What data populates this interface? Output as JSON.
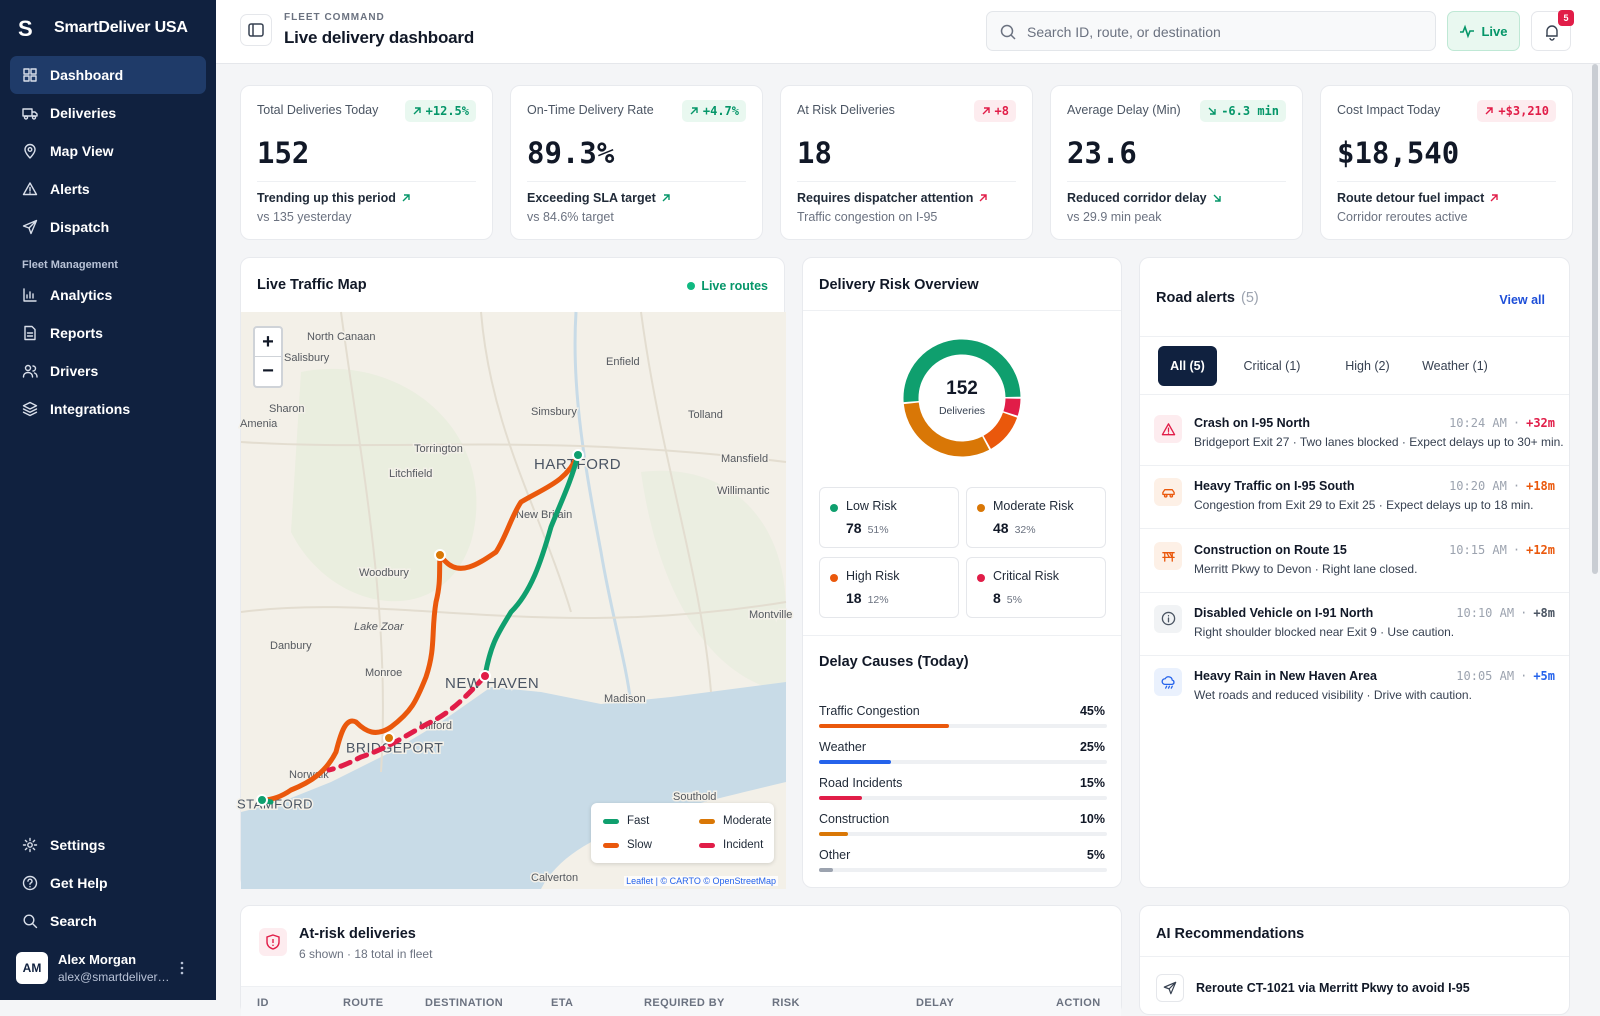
{
  "sidebar": {
    "logo": "S",
    "brand": "SmartDeliver USA",
    "nav": [
      "Dashboard",
      "Deliveries",
      "Map View",
      "Alerts",
      "Dispatch"
    ],
    "section": "Fleet Management",
    "nav2": [
      "Analytics",
      "Reports",
      "Drivers",
      "Integrations"
    ],
    "footer": [
      "Settings",
      "Get Help",
      "Search"
    ],
    "user": {
      "initials": "AM",
      "name": "Alex Morgan",
      "email": "alex@smartdeliver…"
    }
  },
  "header": {
    "overline": "FLEET COMMAND",
    "title": "Live delivery dashboard",
    "search_placeholder": "Search ID, route, or destination",
    "live": "Live",
    "notifications": 5
  },
  "kpis": [
    {
      "label": "Total Deliveries Today",
      "delta": "+12.5%",
      "trend": "up",
      "value": "152",
      "note": "Trending up this period",
      "sub": "vs 135 yesterday"
    },
    {
      "label": "On-Time Delivery Rate",
      "delta": "+4.7%",
      "trend": "up",
      "value": "89.3%",
      "note": "Exceeding SLA target",
      "sub": "vs 84.6% target"
    },
    {
      "label": "At Risk Deliveries",
      "delta": "+8",
      "trend": "bad",
      "value": "18",
      "note": "Requires dispatcher attention",
      "sub": "Traffic congestion on I-95"
    },
    {
      "label": "Average Delay (Min)",
      "delta": "-6.3 min",
      "trend": "down",
      "value": "23.6",
      "note": "Reduced corridor delay",
      "sub": "vs 29.9 min peak"
    },
    {
      "label": "Cost Impact Today",
      "delta": "+$3,210",
      "trend": "bad",
      "value": "$18,540",
      "note": "Route detour fuel impact",
      "sub": "Corridor reroutes active"
    }
  ],
  "map": {
    "title": "Live Traffic Map",
    "status": "Live routes",
    "zoom_in": "+",
    "zoom_out": "−",
    "places": [
      "North Canaan",
      "Salisbury",
      "Enfield",
      "Sharon",
      "Simsbury",
      "Tolland",
      "Amenia",
      "Torrington",
      "Litchfield",
      "Mansfield",
      "HARTFORD",
      "Willimantic",
      "New Britain",
      "Woodbury",
      "Lake Zoar",
      "Danbury",
      "Montville",
      "Monroe",
      "NEW HAVEN",
      "Madison",
      "BRIDGEPORT",
      "Milford",
      "Norwalk",
      "STAMFORD",
      "Southold",
      "Calverton"
    ],
    "legend": [
      "Fast",
      "Moderate",
      "Slow",
      "Incident"
    ],
    "legend_colors": [
      "#0f9f6e",
      "#d97706",
      "#ea580c",
      "#e11d48"
    ],
    "attribution": "Leaflet | © CARTO © OpenStreetMap"
  },
  "risk": {
    "title": "Delivery Risk Overview",
    "total": 152,
    "total_label": "Deliveries",
    "levels": [
      {
        "name": "Low Risk",
        "value": 78,
        "share": "51%",
        "color": "#0f9f6e"
      },
      {
        "name": "Moderate Risk",
        "value": 48,
        "share": "32%",
        "color": "#d97706"
      },
      {
        "name": "High Risk",
        "value": 18,
        "share": "12%",
        "color": "#ea580c"
      },
      {
        "name": "Critical Risk",
        "value": 8,
        "share": "5%",
        "color": "#e11d48"
      }
    ]
  },
  "delays": {
    "title": "Delay Causes (Today)",
    "categories": [
      "Traffic Congestion",
      "Weather",
      "Road Incidents",
      "Construction",
      "Other"
    ],
    "values": [
      45,
      25,
      15,
      10,
      5
    ],
    "value_labels": [
      "45%",
      "25%",
      "15%",
      "10%",
      "5%"
    ],
    "colors": [
      "#ea580c",
      "#2563eb",
      "#e11d48",
      "#d97706",
      "#9ca3af"
    ],
    "xlim": [
      0,
      100
    ]
  },
  "alerts": {
    "title": "Road alerts",
    "count": "(5)",
    "view_all": "View all",
    "tabs": [
      "All (5)",
      "Critical (1)",
      "High (2)",
      "Weather (1)"
    ],
    "items": [
      {
        "title": "Crash on I-95 North",
        "time": "10:24 AM",
        "delay": "+32m",
        "desc": "Bridgeport Exit 27 · Two lanes blocked · Expect delays up to 30+ min.",
        "color": "#e11d48",
        "bg": "#fdecef"
      },
      {
        "title": "Heavy Traffic on I-95 South",
        "time": "10:20 AM",
        "delay": "+18m",
        "desc": "Congestion from Exit 29 to Exit 25 · Expect delays up to 18 min.",
        "color": "#ea580c",
        "bg": "#fdf0e6"
      },
      {
        "title": "Construction on Route 15",
        "time": "10:15 AM",
        "delay": "+12m",
        "desc": "Merritt Pkwy to Devon · Right lane closed.",
        "color": "#ea580c",
        "bg": "#fdf0e6"
      },
      {
        "title": "Disabled Vehicle on I-91 North",
        "time": "10:10 AM",
        "delay": "+8m",
        "desc": "Right shoulder blocked near Exit 9 · Use caution.",
        "color": "#4b5563",
        "bg": "#f1f3f5"
      },
      {
        "title": "Heavy Rain in New Haven Area",
        "time": "10:05 AM",
        "delay": "+5m",
        "desc": "Wet roads and reduced visibility · Drive with caution.",
        "color": "#2563eb",
        "bg": "#eaf1fd"
      }
    ]
  },
  "at_risk": {
    "title": "At-risk deliveries",
    "subtitle": "6 shown · 18 total in fleet",
    "columns": [
      "ID",
      "ROUTE",
      "DESTINATION",
      "ETA",
      "REQUIRED BY",
      "RISK",
      "DELAY",
      "ACTION"
    ]
  },
  "ai": {
    "title": "AI Recommendations",
    "items": [
      "Reroute CT-1021 via Merritt Pkwy to avoid I-95"
    ]
  }
}
